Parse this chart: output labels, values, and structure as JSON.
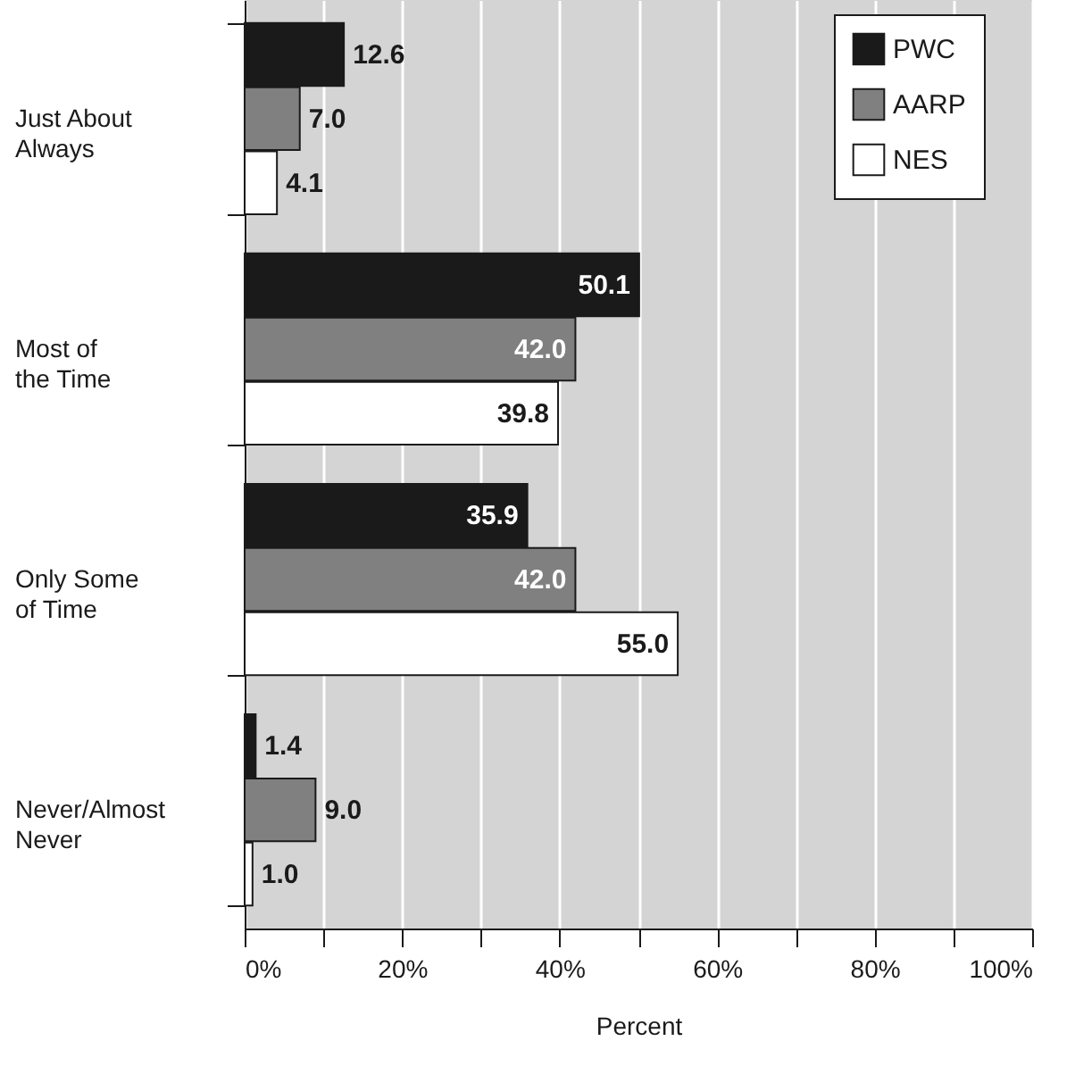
{
  "chart_data": {
    "type": "bar",
    "orientation": "horizontal",
    "xlabel": "Percent",
    "categories": [
      "Just About\nAlways",
      "Most of\nthe Time",
      "Only Some\nof Time",
      "Never/Almost\nNever"
    ],
    "series": [
      {
        "name": "PWC",
        "color": "#1a1a1a",
        "values": [
          12.6,
          50.1,
          35.9,
          1.4
        ],
        "value_labels": [
          "12.6",
          "50.1",
          "35.9",
          "1.4"
        ]
      },
      {
        "name": "AARP",
        "color": "#808080",
        "values": [
          7.0,
          42.0,
          42.0,
          9.0
        ],
        "value_labels": [
          "7.0",
          "42.0",
          "42.0",
          "9.0"
        ]
      },
      {
        "name": "NES",
        "color": "#ffffff",
        "values": [
          4.1,
          39.8,
          55.0,
          1.0
        ],
        "value_labels": [
          "4.1",
          "39.8",
          "55.0",
          "1.0"
        ]
      }
    ],
    "xlim": [
      0,
      100
    ],
    "xticks": [
      {
        "value": 0,
        "label": "0%"
      },
      {
        "value": 10,
        "label": null
      },
      {
        "value": 20,
        "label": "20%"
      },
      {
        "value": 30,
        "label": null
      },
      {
        "value": 40,
        "label": "40%"
      },
      {
        "value": 50,
        "label": null
      },
      {
        "value": 60,
        "label": "60%"
      },
      {
        "value": 70,
        "label": null
      },
      {
        "value": 80,
        "label": "80%"
      },
      {
        "value": 90,
        "label": null
      },
      {
        "value": 100,
        "label": "100%"
      }
    ],
    "grid": "x",
    "legend": "top right"
  }
}
